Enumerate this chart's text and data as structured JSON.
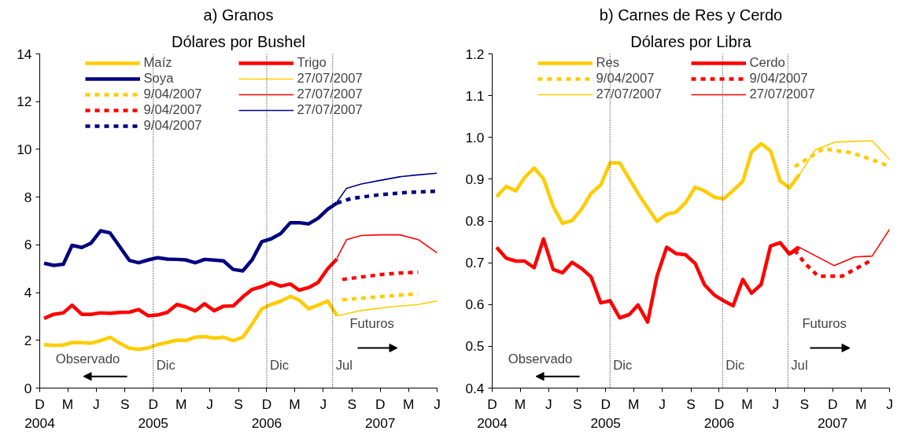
{
  "chart_data": [
    {
      "type": "line",
      "title": "a) Granos",
      "subtitle": "Dólares por Bushel",
      "legend": "top",
      "grid": false,
      "marker": "none",
      "xlim": [
        "2004-12",
        "2008-06"
      ],
      "xticks": [
        {
          "value": "2004-12",
          "label": "D\n2004"
        },
        {
          "value": "2005-03",
          "label": "M"
        },
        {
          "value": "2005-06",
          "label": "J"
        },
        {
          "value": "2005-09",
          "label": "S"
        },
        {
          "value": "2005-12",
          "label": "D\n2005"
        },
        {
          "value": "2006-03",
          "label": "M"
        },
        {
          "value": "2006-06",
          "label": "J"
        },
        {
          "value": "2006-09",
          "label": "S"
        },
        {
          "value": "2006-12",
          "label": "D\n2006"
        },
        {
          "value": "2007-03",
          "label": "M"
        },
        {
          "value": "2007-06",
          "label": "J"
        },
        {
          "value": "2007-09",
          "label": "S"
        },
        {
          "value": "2007-12",
          "label": "D\n2007"
        },
        {
          "value": "2008-03",
          "label": "M"
        },
        {
          "value": "2008-06",
          "label": "J"
        }
      ],
      "ylim": [
        0,
        14
      ],
      "yticks": [
        0,
        2,
        4,
        6,
        8,
        10,
        12,
        14
      ],
      "ref_lines": [
        {
          "axis": "x",
          "value": "2005-12-01",
          "label": "Dic",
          "line_style": "dotted"
        },
        {
          "axis": "x",
          "value": "2006-12-01",
          "label": "Dic",
          "line_style": "dotted"
        },
        {
          "axis": "x",
          "value": "2007-07-01",
          "label": "Jul",
          "line_style": "dotted"
        }
      ],
      "annotations": [
        "Observado",
        "Futuros"
      ],
      "series": [
        {
          "name": "Maíz",
          "color": "#ffcc00",
          "line_style": "solid",
          "x": [
            "2004-12-15",
            "2005-01-15",
            "2005-02-15",
            "2005-03-15",
            "2005-04-15",
            "2005-05-15",
            "2005-06-15",
            "2005-07-15",
            "2005-08-15",
            "2005-09-15",
            "2005-10-15",
            "2005-11-15",
            "2005-12-15",
            "2006-01-15",
            "2006-02-15",
            "2006-03-15",
            "2006-04-15",
            "2006-05-15",
            "2006-06-15",
            "2006-07-15",
            "2006-08-15",
            "2006-09-15",
            "2006-10-15",
            "2006-11-15",
            "2006-12-15",
            "2007-01-15",
            "2007-02-15",
            "2007-03-15",
            "2007-04-15",
            "2007-05-15",
            "2007-06-15",
            "2007-07-15"
          ],
          "values": [
            1.82,
            1.79,
            1.8,
            1.91,
            1.9,
            1.88,
            1.99,
            2.13,
            1.88,
            1.67,
            1.62,
            1.68,
            1.82,
            1.91,
            2.01,
            1.99,
            2.13,
            2.16,
            2.09,
            2.13,
            1.99,
            2.13,
            2.68,
            3.32,
            3.5,
            3.64,
            3.84,
            3.69,
            3.32,
            3.47,
            3.65,
            3.03
          ]
        },
        {
          "name": "Trigo",
          "color": "#ff0000",
          "line_style": "solid",
          "x": [
            "2004-12-15",
            "2005-01-15",
            "2005-02-15",
            "2005-03-15",
            "2005-04-15",
            "2005-05-15",
            "2005-06-15",
            "2005-07-15",
            "2005-08-15",
            "2005-09-15",
            "2005-10-15",
            "2005-11-15",
            "2005-12-15",
            "2006-01-15",
            "2006-02-15",
            "2006-03-15",
            "2006-04-15",
            "2006-05-15",
            "2006-06-15",
            "2006-07-15",
            "2006-08-15",
            "2006-09-15",
            "2006-10-15",
            "2006-11-15",
            "2006-12-15",
            "2007-01-15",
            "2007-02-15",
            "2007-03-15",
            "2007-04-15",
            "2007-05-15",
            "2007-06-15",
            "2007-07-15"
          ],
          "values": [
            2.92,
            3.09,
            3.15,
            3.47,
            3.09,
            3.09,
            3.15,
            3.13,
            3.17,
            3.18,
            3.29,
            3.03,
            3.06,
            3.17,
            3.5,
            3.4,
            3.23,
            3.53,
            3.24,
            3.43,
            3.44,
            3.82,
            4.13,
            4.25,
            4.42,
            4.27,
            4.36,
            4.1,
            4.21,
            4.42,
            5.0,
            5.41
          ]
        },
        {
          "name": "Soya",
          "color": "#000080",
          "line_style": "solid",
          "x": [
            "2004-12-15",
            "2005-01-15",
            "2005-02-15",
            "2005-03-15",
            "2005-04-15",
            "2005-05-15",
            "2005-06-15",
            "2005-07-15",
            "2005-08-15",
            "2005-09-15",
            "2005-10-15",
            "2005-11-15",
            "2005-12-15",
            "2006-01-15",
            "2006-02-15",
            "2006-03-15",
            "2006-04-15",
            "2006-05-15",
            "2006-06-15",
            "2006-07-15",
            "2006-08-15",
            "2006-09-15",
            "2006-10-15",
            "2006-11-15",
            "2006-12-15",
            "2007-01-15",
            "2007-02-15",
            "2007-03-15",
            "2007-04-15",
            "2007-05-15",
            "2007-06-15",
            "2007-07-15"
          ],
          "values": [
            5.23,
            5.14,
            5.19,
            5.98,
            5.89,
            6.07,
            6.59,
            6.5,
            5.93,
            5.35,
            5.25,
            5.37,
            5.46,
            5.4,
            5.39,
            5.37,
            5.25,
            5.39,
            5.36,
            5.33,
            4.97,
            4.91,
            5.37,
            6.13,
            6.25,
            6.47,
            6.93,
            6.93,
            6.88,
            7.11,
            7.49,
            7.75
          ]
        },
        {
          "name": "27/07/2007",
          "color": "#ffcc00",
          "line_style": "solid",
          "x": [
            "2007-07-15",
            "2007-10-01",
            "2008-01-01",
            "2008-04-01",
            "2008-06-01"
          ],
          "values": [
            3.02,
            3.25,
            3.4,
            3.5,
            3.65
          ]
        },
        {
          "name": "9/04/2007",
          "color": "#ffcc00",
          "line_style": "dashed",
          "x": [
            "2007-08-01",
            "2007-12-01",
            "2008-04-01"
          ],
          "values": [
            3.7,
            3.83,
            3.95
          ]
        },
        {
          "name": "27/07/2007",
          "color": "#ff0000",
          "line_style": "solid",
          "x": [
            "2007-07-15",
            "2007-08-15",
            "2007-10-01",
            "2007-12-01",
            "2008-02-01",
            "2008-04-01",
            "2008-06-01"
          ],
          "values": [
            5.45,
            6.22,
            6.39,
            6.42,
            6.42,
            6.22,
            5.66
          ]
        },
        {
          "name": "9/04/2007",
          "color": "#ff0000",
          "line_style": "dashed",
          "x": [
            "2007-08-01",
            "2007-10-01",
            "2007-12-01",
            "2008-02-01",
            "2008-04-01"
          ],
          "values": [
            4.55,
            4.65,
            4.75,
            4.82,
            4.85
          ]
        },
        {
          "name": "27/07/2007",
          "color": "#000080",
          "line_style": "solid",
          "x": [
            "2007-07-15",
            "2007-08-15",
            "2007-10-01",
            "2007-12-01",
            "2008-02-01",
            "2008-04-01",
            "2008-06-01"
          ],
          "values": [
            7.8,
            8.37,
            8.55,
            8.7,
            8.85,
            8.93,
            9.0
          ]
        },
        {
          "name": "9/04/2007",
          "color": "#000080",
          "line_style": "dashed",
          "x": [
            "2007-07-15",
            "2007-09-01",
            "2007-12-01",
            "2008-03-01",
            "2008-06-01"
          ],
          "values": [
            7.75,
            7.95,
            8.1,
            8.2,
            8.25
          ]
        }
      ]
    },
    {
      "type": "line",
      "title": "b) Carnes de Res y Cerdo",
      "subtitle": "Dólares por Libra",
      "legend": "top",
      "grid": false,
      "marker": "none",
      "xlim": [
        "2004-12",
        "2008-06"
      ],
      "xticks": [
        {
          "value": "2004-12",
          "label": "D\n2004"
        },
        {
          "value": "2005-03",
          "label": "M"
        },
        {
          "value": "2005-06",
          "label": "J"
        },
        {
          "value": "2005-09",
          "label": "S"
        },
        {
          "value": "2005-12",
          "label": "D\n2005"
        },
        {
          "value": "2006-03",
          "label": "M"
        },
        {
          "value": "2006-06",
          "label": "J"
        },
        {
          "value": "2006-09",
          "label": "S"
        },
        {
          "value": "2006-12",
          "label": "D\n2006"
        },
        {
          "value": "2007-03",
          "label": "M"
        },
        {
          "value": "2007-06",
          "label": "J"
        },
        {
          "value": "2007-09",
          "label": "S"
        },
        {
          "value": "2007-12",
          "label": "D\n2007"
        },
        {
          "value": "2008-03",
          "label": "M"
        },
        {
          "value": "2008-06",
          "label": "J"
        }
      ],
      "ylim": [
        0.4,
        1.2
      ],
      "yticks": [
        {
          "value": 0.4,
          "label": "0.4"
        },
        {
          "value": 0.5,
          "label": "0.5"
        },
        {
          "value": 0.6,
          "label": "0.6"
        },
        {
          "value": 0.7,
          "label": "0.7"
        },
        {
          "value": 0.8,
          "label": "0.8"
        },
        {
          "value": 0.9,
          "label": "0.9"
        },
        {
          "value": 1.0,
          "label": "1.0"
        },
        {
          "value": 1.1,
          "label": "1.1"
        },
        {
          "value": 1.2,
          "label": "1.2"
        }
      ],
      "ref_lines": [
        {
          "axis": "x",
          "value": "2005-12-15",
          "label": "Dic",
          "line_style": "dotted"
        },
        {
          "axis": "x",
          "value": "2006-12-12",
          "label": "Dic",
          "line_style": "dotted"
        },
        {
          "axis": "x",
          "value": "2007-07-10",
          "label": "Jul",
          "line_style": "dotted"
        }
      ],
      "annotations": [
        "Observado",
        "Futuros"
      ],
      "series": [
        {
          "name": "Res",
          "color": "#ffcc00",
          "line_style": "solid",
          "x": [
            "2004-12-15",
            "2005-01-15",
            "2005-02-15",
            "2005-03-15",
            "2005-04-15",
            "2005-05-15",
            "2005-06-15",
            "2005-07-15",
            "2005-08-15",
            "2005-09-15",
            "2005-10-15",
            "2005-11-15",
            "2005-12-15",
            "2006-01-15",
            "2006-02-15",
            "2006-03-15",
            "2006-04-15",
            "2006-05-15",
            "2006-06-15",
            "2006-07-15",
            "2006-08-15",
            "2006-09-15",
            "2006-10-15",
            "2006-11-15",
            "2006-12-15",
            "2007-01-15",
            "2007-02-15",
            "2007-03-15",
            "2007-04-15",
            "2007-05-15",
            "2007-06-15",
            "2007-07-15",
            "2007-08-15"
          ],
          "values": [
            0.858,
            0.883,
            0.872,
            0.904,
            0.927,
            0.901,
            0.835,
            0.794,
            0.801,
            0.829,
            0.866,
            0.886,
            0.939,
            0.939,
            0.901,
            0.866,
            0.831,
            0.799,
            0.816,
            0.821,
            0.844,
            0.881,
            0.872,
            0.857,
            0.853,
            0.873,
            0.895,
            0.965,
            0.985,
            0.968,
            0.896,
            0.879,
            0.911
          ]
        },
        {
          "name": "Cerdo",
          "color": "#ff0000",
          "line_style": "solid",
          "x": [
            "2004-12-15",
            "2005-01-15",
            "2005-02-15",
            "2005-03-15",
            "2005-04-15",
            "2005-05-15",
            "2005-06-15",
            "2005-07-15",
            "2005-08-15",
            "2005-09-15",
            "2005-10-15",
            "2005-11-15",
            "2005-12-15",
            "2006-01-15",
            "2006-02-15",
            "2006-03-15",
            "2006-04-15",
            "2006-05-15",
            "2006-06-15",
            "2006-07-15",
            "2006-08-15",
            "2006-09-15",
            "2006-10-15",
            "2006-11-15",
            "2006-12-15",
            "2007-01-15",
            "2007-02-15",
            "2007-03-15",
            "2007-04-15",
            "2007-05-15",
            "2007-06-15",
            "2007-07-15",
            "2007-08-15"
          ],
          "values": [
            0.737,
            0.711,
            0.704,
            0.704,
            0.688,
            0.757,
            0.684,
            0.676,
            0.701,
            0.686,
            0.666,
            0.604,
            0.609,
            0.568,
            0.576,
            0.599,
            0.558,
            0.668,
            0.737,
            0.722,
            0.719,
            0.698,
            0.647,
            0.623,
            0.609,
            0.597,
            0.66,
            0.627,
            0.648,
            0.74,
            0.748,
            0.721,
            0.735
          ]
        },
        {
          "name": "9/04/2007",
          "color": "#ffcc00",
          "line_style": "dashed",
          "x": [
            "2007-08-01",
            "2007-11-01",
            "2008-02-01",
            "2008-05-01",
            "2008-06-01"
          ],
          "values": [
            0.93,
            0.973,
            0.963,
            0.94,
            0.93
          ]
        },
        {
          "name": "9/04/2007",
          "color": "#ff0000",
          "line_style": "dashed",
          "x": [
            "2007-08-01",
            "2007-09-01",
            "2007-10-15",
            "2008-01-01",
            "2008-04-01"
          ],
          "values": [
            0.73,
            0.7,
            0.668,
            0.668,
            0.705
          ]
        },
        {
          "name": "27/07/2007",
          "color": "#ffcc00",
          "line_style": "solid",
          "x": [
            "2007-07-10",
            "2007-08-10",
            "2007-10-06",
            "2007-12-10",
            "2008-04-06",
            "2008-06-01"
          ],
          "values": [
            0.878,
            0.904,
            0.97,
            0.989,
            0.992,
            0.947
          ]
        },
        {
          "name": "27/07/2007",
          "color": "#ff0000",
          "line_style": "solid",
          "x": [
            "2007-07-10",
            "2007-08-10",
            "2007-12-06",
            "2008-02-10",
            "2008-04-06",
            "2008-06-01"
          ],
          "values": [
            0.721,
            0.739,
            0.693,
            0.714,
            0.716,
            0.78
          ]
        }
      ]
    }
  ]
}
